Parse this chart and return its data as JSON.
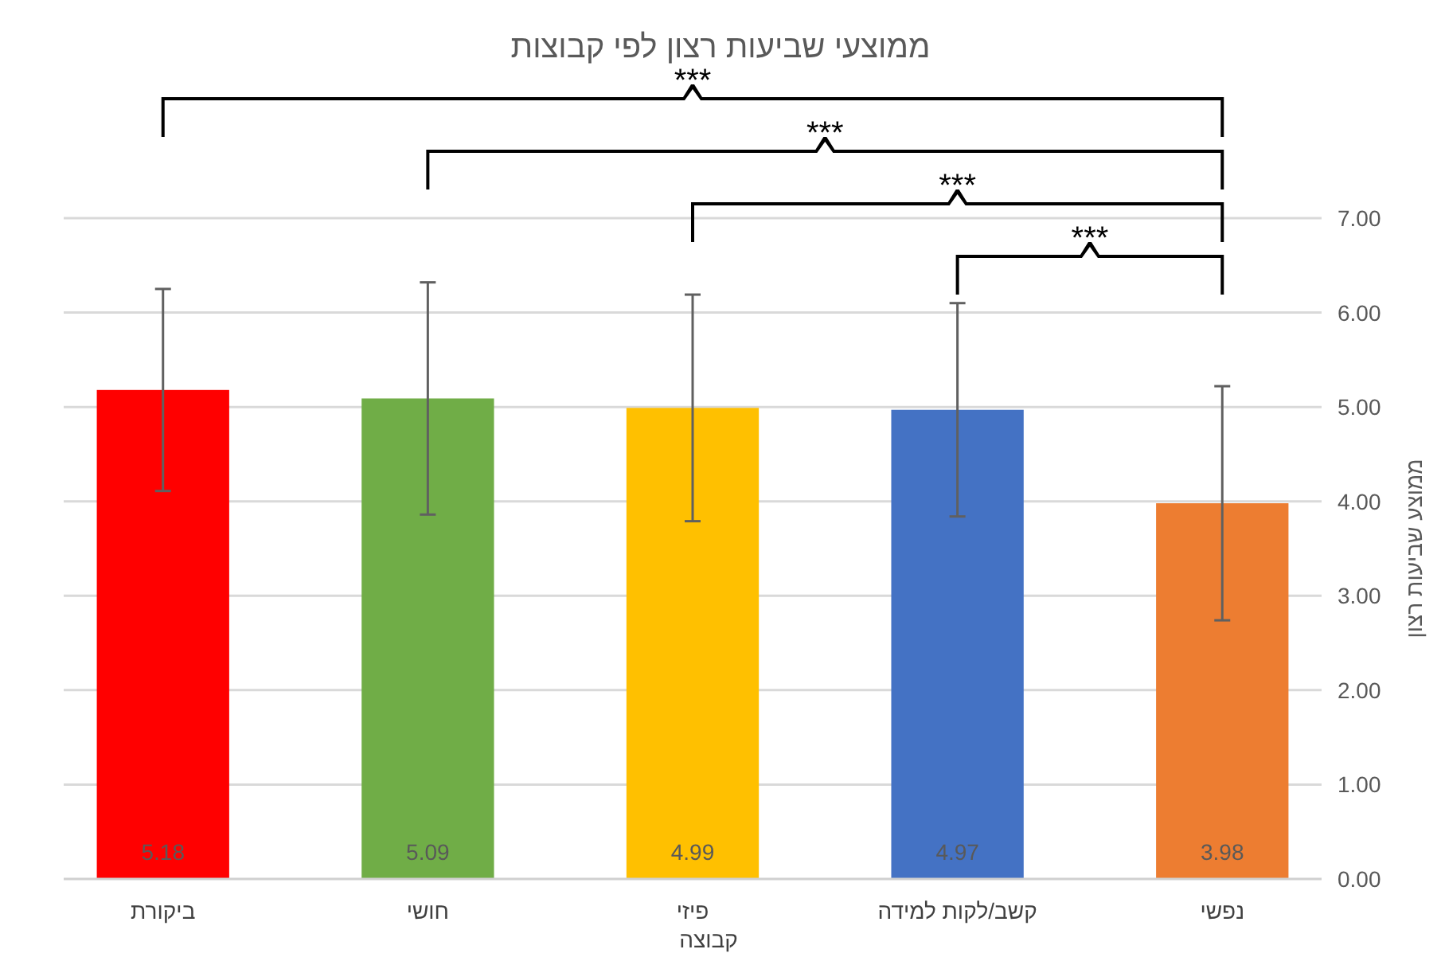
{
  "chart_data": {
    "type": "bar",
    "title": "ממוצעי שביעות רצון לפי קבוצות",
    "xlabel": "קבוצה",
    "ylabel": "ממוצע שביעות רצון",
    "categories": [
      "ביקורת",
      "חושי",
      "פיזי",
      "קשב/לקות למידה",
      "נפשי"
    ],
    "values": [
      5.18,
      5.09,
      4.99,
      4.97,
      3.98
    ],
    "colors": [
      "#ff0000",
      "#70ad47",
      "#ffc000",
      "#4472c4",
      "#ed7d31"
    ],
    "errors": [
      1.07,
      1.23,
      1.2,
      1.13,
      1.24
    ],
    "ylim": [
      0,
      7
    ],
    "yticks": [
      {
        "value": 0,
        "label": "0.00"
      },
      {
        "value": 1,
        "label": "1.00"
      },
      {
        "value": 2,
        "label": "2.00"
      },
      {
        "value": 3,
        "label": "3.00"
      },
      {
        "value": 4,
        "label": "4.00"
      },
      {
        "value": 5,
        "label": "5.00"
      },
      {
        "value": 6,
        "label": "6.00"
      },
      {
        "value": 7,
        "label": "7.00"
      }
    ],
    "grid": "y",
    "data_labels": true,
    "annotations": [
      "***",
      "***",
      "***",
      "***"
    ]
  }
}
